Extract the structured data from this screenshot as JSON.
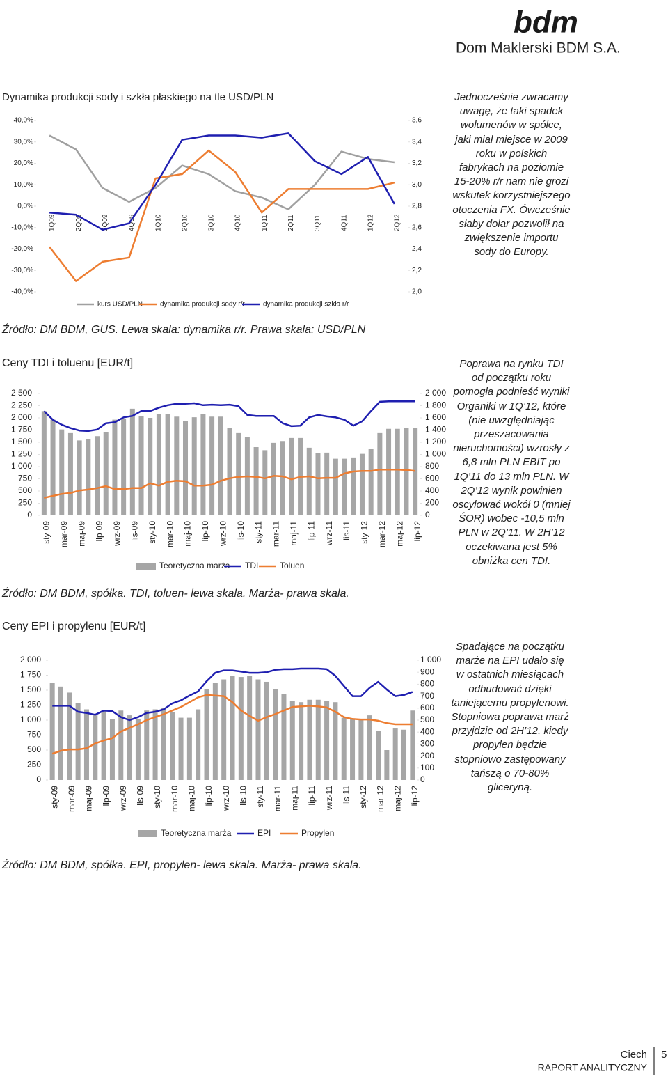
{
  "header": {
    "logo": "bdm",
    "company": "Dom Maklerski BDM S.A."
  },
  "chart_data": [
    {
      "type": "line",
      "title": "Dynamika produkcji sody i szkła płaskiego na tle USD/PLN",
      "categories": [
        "1Q09",
        "2Q09",
        "3Q09",
        "4Q09",
        "1Q10",
        "2Q10",
        "3Q10",
        "4Q10",
        "1Q11",
        "2Q11",
        "3Q11",
        "4Q11",
        "1Q12",
        "2Q12"
      ],
      "ylim": [
        -40,
        40
      ],
      "yticks": [
        {
          "value": 40,
          "label": "40,0%"
        },
        {
          "value": 30,
          "label": "30,0%"
        },
        {
          "value": 20,
          "label": "20,0%"
        },
        {
          "value": 10,
          "label": "10,0%"
        },
        {
          "value": 0,
          "label": "0,0%"
        },
        {
          "value": -10,
          "label": "-10,0%"
        },
        {
          "value": -20,
          "label": "-20,0%"
        },
        {
          "value": -30,
          "label": "-30,0%"
        },
        {
          "value": -40,
          "label": "-40,0%"
        }
      ],
      "y2lim": [
        2.0,
        3.6
      ],
      "y2ticks": [
        {
          "value": 3.6,
          "label": "3,6"
        },
        {
          "value": 3.4,
          "label": "3,4"
        },
        {
          "value": 3.2,
          "label": "3,2"
        },
        {
          "value": 3.0,
          "label": "3,0"
        },
        {
          "value": 2.8,
          "label": "2,8"
        },
        {
          "value": 2.6,
          "label": "2,6"
        },
        {
          "value": 2.4,
          "label": "2,4"
        },
        {
          "value": 2.2,
          "label": "2,2"
        },
        {
          "value": 2.0,
          "label": "2,0"
        }
      ],
      "series": [
        {
          "name": "kurs USD/PLN",
          "type": "line",
          "axis": "y2",
          "color": "#a0a0a0",
          "values": [
            3.46,
            3.33,
            2.97,
            2.84,
            2.97,
            3.18,
            3.1,
            2.94,
            2.88,
            2.77,
            3.0,
            3.31,
            3.24,
            3.21
          ]
        },
        {
          "name": "dynamika produkcji sody r/r",
          "type": "line",
          "color": "#ed7d31",
          "values": [
            -19,
            -35,
            -26,
            -24,
            13,
            15,
            26,
            16,
            -3,
            8,
            8,
            8,
            8,
            11
          ]
        },
        {
          "name": "dynamika produkcji szkła r/r",
          "type": "line",
          "color": "#1f1fb0",
          "values": [
            -3,
            -4,
            -11,
            -8,
            10,
            31,
            33,
            33,
            32,
            34,
            21,
            15,
            23,
            1
          ]
        }
      ]
    },
    {
      "type": "combo",
      "title": "Ceny TDI i toluenu [EUR/t]",
      "categories": [
        "sty-09",
        null,
        "mar-09",
        null,
        "maj-09",
        null,
        "lip-09",
        null,
        "wrz-09",
        null,
        "lis-09",
        null,
        "sty-10",
        null,
        "mar-10",
        null,
        "maj-10",
        null,
        "lip-10",
        null,
        "wrz-10",
        null,
        "lis-10",
        null,
        "sty-11",
        null,
        "mar-11",
        null,
        "maj-11",
        null,
        "lip-11",
        null,
        "wrz-11",
        null,
        "lis-11",
        null,
        "sty-12",
        null,
        "mar-12",
        null,
        "maj-12",
        null,
        "lip-12"
      ],
      "ylim": [
        0,
        2500
      ],
      "yticks": [
        {
          "value": 2500,
          "label": "2 500"
        },
        {
          "value": 2250,
          "label": "2 250"
        },
        {
          "value": 2000,
          "label": "2 000"
        },
        {
          "value": 1750,
          "label": "1 750"
        },
        {
          "value": 1500,
          "label": "1 500"
        },
        {
          "value": 1250,
          "label": "1 250"
        },
        {
          "value": 1000,
          "label": "1 000"
        },
        750,
        500,
        250,
        0
      ],
      "y2lim": [
        0,
        2000
      ],
      "y2ticks": [
        {
          "value": 2000,
          "label": "2 000"
        },
        {
          "value": 1800,
          "label": "1 800"
        },
        {
          "value": 1600,
          "label": "1 600"
        },
        {
          "value": 1400,
          "label": "1 400"
        },
        {
          "value": 1200,
          "label": "1 200"
        },
        {
          "value": 1000,
          "label": "1 000"
        },
        800,
        600,
        400,
        200,
        0
      ],
      "series": [
        {
          "name": "Teoretyczna marża",
          "type": "bar",
          "axis": "y2",
          "color": "#a6a6a6",
          "values": [
            1710,
            1570,
            1410,
            1350,
            1230,
            1250,
            1300,
            1370,
            1570,
            1590,
            1750,
            1630,
            1600,
            1660,
            1660,
            1620,
            1550,
            1610,
            1660,
            1620,
            1620,
            1430,
            1350,
            1290,
            1120,
            1070,
            1190,
            1220,
            1270,
            1270,
            1110,
            1020,
            1030,
            930,
            930,
            950,
            1010,
            1090,
            1350,
            1420,
            1420,
            1440,
            1430
          ]
        },
        {
          "name": "TDI",
          "type": "line",
          "color": "#1f1fb0",
          "values": [
            2140,
            1960,
            1860,
            1790,
            1740,
            1730,
            1760,
            1890,
            1910,
            2010,
            2040,
            2140,
            2140,
            2210,
            2260,
            2290,
            2290,
            2300,
            2260,
            2270,
            2260,
            2270,
            2240,
            2060,
            2040,
            2040,
            2040,
            1890,
            1830,
            1840,
            2010,
            2060,
            2030,
            2010,
            1960,
            1840,
            1930,
            2140,
            2330,
            2340,
            2340,
            2340,
            2340
          ]
        },
        {
          "name": "Toluen",
          "type": "line",
          "color": "#ed7d31",
          "values": [
            360,
            400,
            440,
            460,
            510,
            530,
            560,
            600,
            540,
            540,
            560,
            560,
            660,
            610,
            690,
            710,
            700,
            610,
            610,
            630,
            710,
            760,
            790,
            800,
            790,
            760,
            810,
            800,
            740,
            790,
            800,
            760,
            770,
            770,
            860,
            900,
            910,
            910,
            940,
            940,
            940,
            930,
            910
          ]
        }
      ]
    },
    {
      "type": "combo",
      "title": "Ceny EPI i propylenu [EUR/t]",
      "categories": [
        "sty-09",
        null,
        "mar-09",
        null,
        "maj-09",
        null,
        "lip-09",
        null,
        "wrz-09",
        null,
        "lis-09",
        null,
        "sty-10",
        null,
        "mar-10",
        null,
        "maj-10",
        null,
        "lip-10",
        null,
        "wrz-10",
        null,
        "lis-10",
        null,
        "sty-11",
        null,
        "mar-11",
        null,
        "maj-11",
        null,
        "lip-11",
        null,
        "wrz-11",
        null,
        "lis-11",
        null,
        "sty-12",
        null,
        "mar-12",
        null,
        "maj-12",
        null,
        "lip-12"
      ],
      "ylim": [
        0,
        2000
      ],
      "yticks": [
        {
          "value": 2000,
          "label": "2 000"
        },
        {
          "value": 1750,
          "label": "1 750"
        },
        {
          "value": 1500,
          "label": "1 500"
        },
        {
          "value": 1250,
          "label": "1 250"
        },
        {
          "value": 1000,
          "label": "1 000"
        },
        750,
        500,
        250,
        0
      ],
      "y2lim": [
        0,
        1000
      ],
      "y2ticks": [
        {
          "value": 1000,
          "label": "1 000"
        },
        900,
        800,
        700,
        600,
        500,
        400,
        300,
        200,
        100,
        0
      ],
      "series": [
        {
          "name": "Teoretyczna marża",
          "type": "bar",
          "axis": "y2",
          "color": "#a6a6a6",
          "values": [
            810,
            780,
            730,
            640,
            590,
            540,
            580,
            510,
            580,
            540,
            510,
            580,
            590,
            600,
            570,
            520,
            520,
            590,
            760,
            810,
            840,
            870,
            860,
            870,
            840,
            820,
            760,
            720,
            660,
            650,
            670,
            670,
            660,
            650,
            520,
            510,
            510,
            540,
            410,
            250,
            430,
            420,
            580
          ]
        },
        {
          "name": "EPI",
          "type": "line",
          "color": "#1f1fb0",
          "values": [
            1240,
            1240,
            1240,
            1140,
            1120,
            1090,
            1160,
            1150,
            1050,
            1000,
            1050,
            1120,
            1140,
            1180,
            1280,
            1330,
            1410,
            1480,
            1650,
            1790,
            1830,
            1830,
            1810,
            1790,
            1790,
            1800,
            1840,
            1850,
            1850,
            1860,
            1860,
            1860,
            1850,
            1740,
            1570,
            1400,
            1400,
            1540,
            1640,
            1510,
            1400,
            1420,
            1470
          ]
        },
        {
          "name": "Propylen",
          "type": "line",
          "color": "#ed7d31",
          "values": [
            440,
            490,
            510,
            510,
            530,
            610,
            660,
            700,
            810,
            870,
            930,
            1000,
            1050,
            1100,
            1160,
            1220,
            1300,
            1380,
            1420,
            1410,
            1400,
            1300,
            1160,
            1070,
            990,
            1050,
            1100,
            1160,
            1220,
            1230,
            1240,
            1230,
            1210,
            1140,
            1050,
            1020,
            1010,
            1010,
            990,
            950,
            930,
            930,
            930
          ]
        }
      ]
    }
  ],
  "sources": [
    "Źródło: DM BDM, GUS. Lewa skala: dynamika r/r. Prawa skala: USD/PLN",
    "Źródło: DM BDM, spółka. TDI, toluen- lewa skala. Marża- prawa skala.",
    "Źródło: DM BDM, spółka. EPI, propylen- lewa skala. Marża- prawa skala."
  ],
  "notes": [
    "Jednocześnie zwracamy uwagę, że taki spadek wolumenów w spółce, jaki miał miejsce w 2009 roku w polskich fabrykach na poziomie 15-20% r/r nam nie grozi wskutek korzystniejszego otoczenia FX. Ówcześnie słaby dolar pozwolił na zwiększenie importu sody do Europy.",
    "Poprawa na rynku TDI od początku roku pomogła podnieść wyniki Organiki w 1Q’12, które (nie uwzględniając przeszacowania nieruchomości) wzrosły z 6,8 mln PLN EBIT po 1Q’11 do 13 mln PLN. W 2Q’12 wynik powinien oscylować wokół 0 (mniej ŚOR) wobec -10,5 mln PLN w 2Q’11. W 2H’12 oczekiwana jest 5% obniżka cen TDI.",
    "Spadające na początku marże na EPI udało się w ostatnich miesiącach odbudować dzięki taniejącemu propylenowi. Stopniowa poprawa marż przyjdzie od 2H’12, kiedy propylen będzie stopniowo zastępowany tańszą o 70-80% gliceryną."
  ],
  "footer": {
    "company": "Ciech",
    "page": 5,
    "report": "RAPORT ANALITYCZNY"
  }
}
